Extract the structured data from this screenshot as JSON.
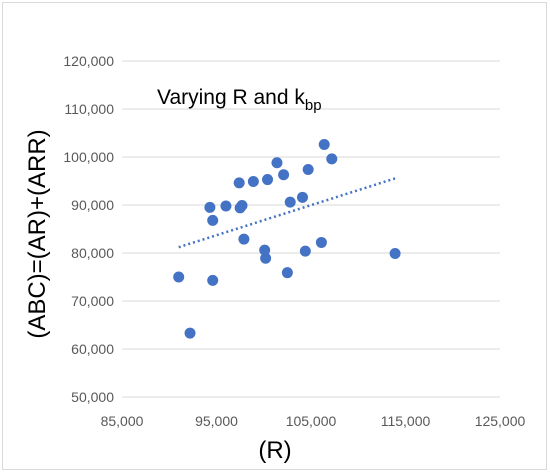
{
  "chart_data": {
    "type": "scatter",
    "title": "Varying R and k",
    "title_subscript": "bp",
    "xlabel": "(R)",
    "ylabel": "(ABC)=(AR)+(ARR)",
    "xlim": [
      85000,
      125000
    ],
    "ylim": [
      50000,
      120000
    ],
    "x_ticks": [
      "85,000",
      "95,000",
      "105,000",
      "115,000",
      "125,000"
    ],
    "y_ticks": [
      "50,000",
      "60,000",
      "70,000",
      "80,000",
      "90,000",
      "100,000",
      "110,000",
      "120,000"
    ],
    "x_tick_values": [
      85000,
      95000,
      105000,
      115000,
      125000
    ],
    "y_tick_values": [
      50000,
      60000,
      70000,
      80000,
      90000,
      100000,
      110000,
      120000
    ],
    "grid": "horizontal",
    "marker_color": "#4472c4",
    "trendline": {
      "style": "dotted",
      "color": "#4472c4",
      "x": [
        91000,
        114000
      ],
      "y": [
        81200,
        95600
      ]
    },
    "points": [
      {
        "x": 91000,
        "y": 75000
      },
      {
        "x": 92200,
        "y": 63300
      },
      {
        "x": 94300,
        "y": 89500
      },
      {
        "x": 94600,
        "y": 86800
      },
      {
        "x": 94600,
        "y": 74300
      },
      {
        "x": 96000,
        "y": 89800
      },
      {
        "x": 97400,
        "y": 94600
      },
      {
        "x": 97500,
        "y": 89400
      },
      {
        "x": 97700,
        "y": 89900
      },
      {
        "x": 97900,
        "y": 82900
      },
      {
        "x": 98900,
        "y": 94900
      },
      {
        "x": 100100,
        "y": 80600
      },
      {
        "x": 100200,
        "y": 78900
      },
      {
        "x": 100400,
        "y": 95300
      },
      {
        "x": 101400,
        "y": 98800
      },
      {
        "x": 102100,
        "y": 96300
      },
      {
        "x": 102500,
        "y": 75900
      },
      {
        "x": 102800,
        "y": 90600
      },
      {
        "x": 104100,
        "y": 91600
      },
      {
        "x": 104400,
        "y": 80400
      },
      {
        "x": 104700,
        "y": 97400
      },
      {
        "x": 106100,
        "y": 82200
      },
      {
        "x": 106400,
        "y": 102600
      },
      {
        "x": 107200,
        "y": 99600
      },
      {
        "x": 113900,
        "y": 79900
      }
    ]
  }
}
